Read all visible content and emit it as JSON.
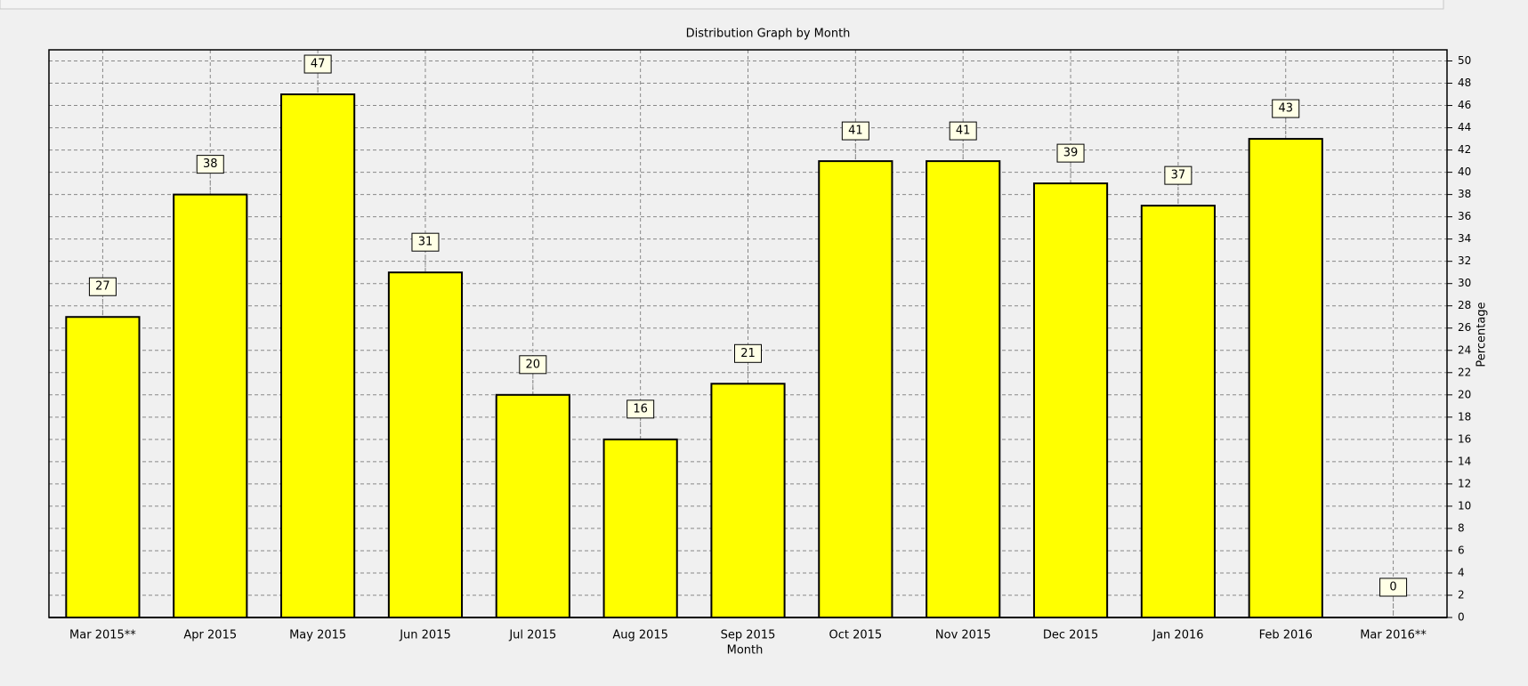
{
  "chart_data": {
    "type": "bar",
    "title": "Distribution Graph by Month",
    "x_label": "Month",
    "y_label": "Percentage",
    "categories": [
      "Mar 2015**",
      "Apr 2015",
      "May 2015",
      "Jun 2015",
      "Jul 2015",
      "Aug 2015",
      "Sep 2015",
      "Oct 2015",
      "Nov 2015",
      "Dec 2015",
      "Jan 2016",
      "Feb 2016",
      "Mar 2016**"
    ],
    "values": [
      27,
      38,
      47,
      31,
      20,
      16,
      21,
      41,
      41,
      39,
      37,
      43,
      0
    ],
    "color": "#ffff00",
    "ylim": [
      0,
      51
    ],
    "yticks": [
      0,
      2,
      4,
      6,
      8,
      10,
      12,
      14,
      16,
      18,
      20,
      22,
      24,
      26,
      28,
      30,
      32,
      34,
      36,
      38,
      40,
      42,
      44,
      46,
      48,
      50
    ],
    "grid": true
  }
}
